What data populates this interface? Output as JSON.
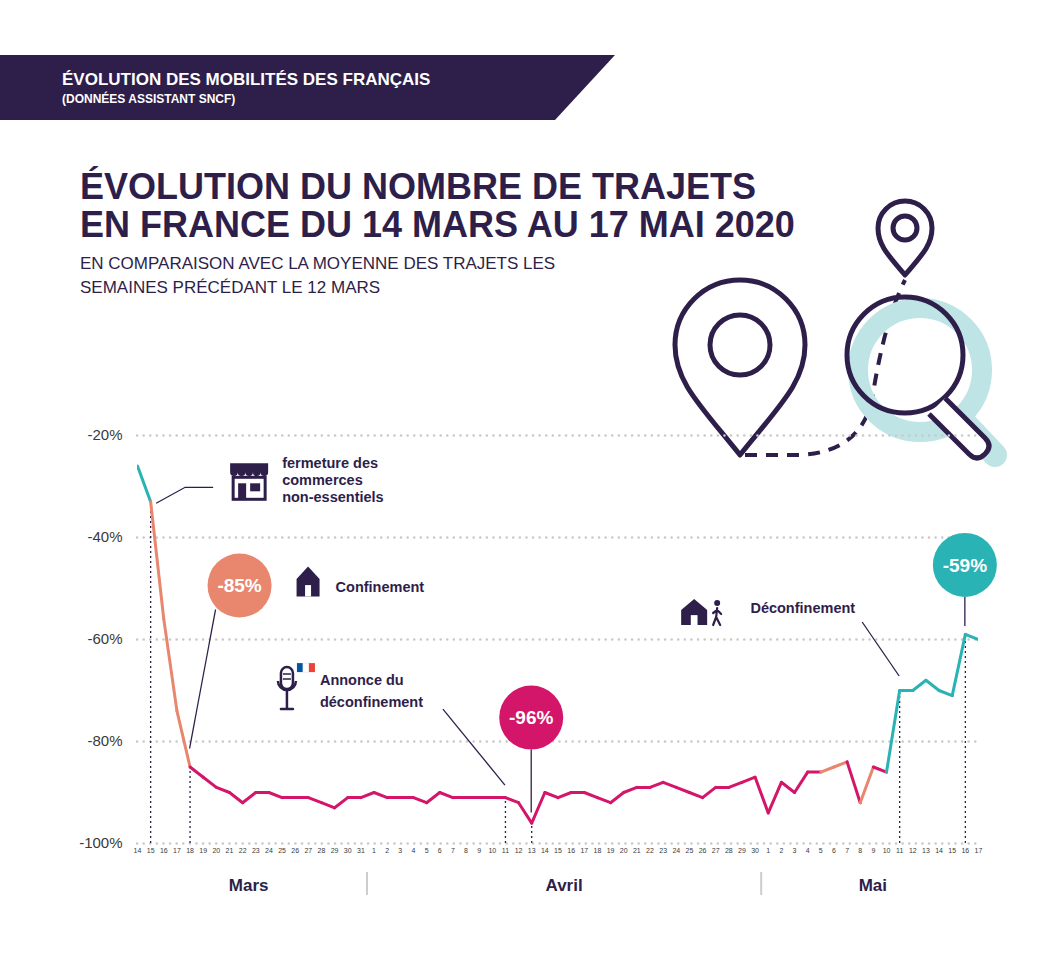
{
  "header": {
    "title": "ÉVOLUTION DES MOBILITÉS DES FRANÇAIS",
    "subtitle": "(DONNÉES ASSISTANT SNCF)"
  },
  "chart_data": {
    "type": "line",
    "title": "ÉVOLUTION DU NOMBRE DE TRAJETS EN FRANCE DU 14 MARS AU 17 MAI 2020",
    "subtitle": "EN COMPARAISON AVEC LA MOYENNE DES TRAJETS LES SEMAINES PRÉCÉDANT LE 12 MARS",
    "x": [
      "2020-03-14",
      "2020-03-15",
      "2020-03-16",
      "2020-03-17",
      "2020-03-18",
      "2020-03-19",
      "2020-03-20",
      "2020-03-21",
      "2020-03-22",
      "2020-03-23",
      "2020-03-24",
      "2020-03-25",
      "2020-03-26",
      "2020-03-27",
      "2020-03-28",
      "2020-03-29",
      "2020-03-30",
      "2020-03-31",
      "2020-04-01",
      "2020-04-02",
      "2020-04-03",
      "2020-04-04",
      "2020-04-05",
      "2020-04-06",
      "2020-04-07",
      "2020-04-08",
      "2020-04-09",
      "2020-04-10",
      "2020-04-11",
      "2020-04-12",
      "2020-04-13",
      "2020-04-14",
      "2020-04-15",
      "2020-04-16",
      "2020-04-17",
      "2020-04-18",
      "2020-04-19",
      "2020-04-20",
      "2020-04-21",
      "2020-04-22",
      "2020-04-23",
      "2020-04-24",
      "2020-04-25",
      "2020-04-26",
      "2020-04-27",
      "2020-04-28",
      "2020-04-29",
      "2020-04-30",
      "2020-05-01",
      "2020-05-02",
      "2020-05-03",
      "2020-05-04",
      "2020-05-05",
      "2020-05-06",
      "2020-05-07",
      "2020-05-08",
      "2020-05-09",
      "2020-05-10",
      "2020-05-11",
      "2020-05-12",
      "2020-05-13",
      "2020-05-14",
      "2020-05-15",
      "2020-05-16",
      "2020-05-17"
    ],
    "values": [
      -26,
      -33,
      -56,
      -74,
      -85,
      -87,
      -89,
      -90,
      -92,
      -90,
      -90,
      -91,
      -91,
      -91,
      -92,
      -93,
      -91,
      -91,
      -90,
      -91,
      -91,
      -91,
      -92,
      -90,
      -91,
      -91,
      -91,
      -91,
      -91,
      -92,
      -96,
      -90,
      -91,
      -90,
      -90,
      -91,
      -92,
      -90,
      -89,
      -89,
      -88,
      -89,
      -90,
      -91,
      -89,
      -89,
      -88,
      -87,
      -94,
      -88,
      -90,
      -86,
      -86,
      -85,
      -84,
      -92,
      -85,
      -86,
      -70,
      -70,
      -68,
      -70,
      -71,
      -59,
      -60
    ],
    "colors": [
      "#2ab3b5",
      "#2ab3b5",
      "#e8866e",
      "#e8866e",
      "#e8866e",
      "#d4166a",
      "#d4166a",
      "#d4166a",
      "#d4166a",
      "#d4166a",
      "#d4166a",
      "#d4166a",
      "#d4166a",
      "#d4166a",
      "#d4166a",
      "#d4166a",
      "#d4166a",
      "#d4166a",
      "#d4166a",
      "#d4166a",
      "#d4166a",
      "#d4166a",
      "#d4166a",
      "#d4166a",
      "#d4166a",
      "#d4166a",
      "#d4166a",
      "#d4166a",
      "#d4166a",
      "#d4166a",
      "#d4166a",
      "#d4166a",
      "#d4166a",
      "#d4166a",
      "#d4166a",
      "#d4166a",
      "#d4166a",
      "#d4166a",
      "#d4166a",
      "#d4166a",
      "#d4166a",
      "#d4166a",
      "#d4166a",
      "#d4166a",
      "#d4166a",
      "#d4166a",
      "#d4166a",
      "#d4166a",
      "#d4166a",
      "#d4166a",
      "#d4166a",
      "#d4166a",
      "#d4166a",
      "#e8866e",
      "#e8866e",
      "#d4166a",
      "#e8866e",
      "#d4166a",
      "#2ab3b5",
      "#2ab3b5",
      "#2ab3b5",
      "#2ab3b5",
      "#2ab3b5",
      "#2ab3b5",
      "#2ab3b5"
    ],
    "xlim": [
      "2020-03-14",
      "2020-05-17"
    ],
    "xticks": [
      {
        "value": "2020-03-14",
        "label": "14"
      },
      {
        "value": "2020-03-15",
        "label": "15"
      },
      {
        "value": "2020-03-16",
        "label": "16"
      },
      {
        "value": "2020-03-17",
        "label": "17"
      },
      {
        "value": "2020-03-18",
        "label": "18"
      },
      {
        "value": "2020-03-19",
        "label": "19"
      },
      {
        "value": "2020-03-20",
        "label": "20"
      },
      {
        "value": "2020-03-21",
        "label": "21"
      },
      {
        "value": "2020-03-22",
        "label": "22"
      },
      {
        "value": "2020-03-23",
        "label": "23"
      },
      {
        "value": "2020-03-24",
        "label": "24"
      },
      {
        "value": "2020-03-25",
        "label": "25"
      },
      {
        "value": "2020-03-26",
        "label": "26"
      },
      {
        "value": "2020-03-27",
        "label": "27"
      },
      {
        "value": "2020-03-28",
        "label": "28"
      },
      {
        "value": "2020-03-29",
        "label": "29"
      },
      {
        "value": "2020-03-30",
        "label": "30"
      },
      {
        "value": "2020-03-31",
        "label": "31"
      },
      {
        "value": "2020-04-01",
        "label": "1"
      },
      {
        "value": "2020-04-02",
        "label": "2"
      },
      {
        "value": "2020-04-03",
        "label": "3"
      },
      {
        "value": "2020-04-04",
        "label": "4"
      },
      {
        "value": "2020-04-05",
        "label": "5"
      },
      {
        "value": "2020-04-06",
        "label": "6"
      },
      {
        "value": "2020-04-07",
        "label": "7"
      },
      {
        "value": "2020-04-08",
        "label": "8"
      },
      {
        "value": "2020-04-09",
        "label": "9"
      },
      {
        "value": "2020-04-10",
        "label": "10"
      },
      {
        "value": "2020-04-11",
        "label": "11"
      },
      {
        "value": "2020-04-12",
        "label": "12"
      },
      {
        "value": "2020-04-13",
        "label": "13"
      },
      {
        "value": "2020-04-14",
        "label": "14"
      },
      {
        "value": "2020-04-15",
        "label": "15"
      },
      {
        "value": "2020-04-16",
        "label": "16"
      },
      {
        "value": "2020-04-17",
        "label": "17"
      },
      {
        "value": "2020-04-18",
        "label": "18"
      },
      {
        "value": "2020-04-19",
        "label": "19"
      },
      {
        "value": "2020-04-20",
        "label": "20"
      },
      {
        "value": "2020-04-21",
        "label": "21"
      },
      {
        "value": "2020-04-22",
        "label": "22"
      },
      {
        "value": "2020-04-23",
        "label": "23"
      },
      {
        "value": "2020-04-24",
        "label": "24"
      },
      {
        "value": "2020-04-25",
        "label": "25"
      },
      {
        "value": "2020-04-26",
        "label": "26"
      },
      {
        "value": "2020-04-27",
        "label": "27"
      },
      {
        "value": "2020-04-28",
        "label": "28"
      },
      {
        "value": "2020-04-29",
        "label": "29"
      },
      {
        "value": "2020-04-30",
        "label": "30"
      },
      {
        "value": "2020-05-01",
        "label": "1"
      },
      {
        "value": "2020-05-02",
        "label": "2"
      },
      {
        "value": "2020-05-03",
        "label": "3"
      },
      {
        "value": "2020-05-04",
        "label": "4"
      },
      {
        "value": "2020-05-05",
        "label": "5"
      },
      {
        "value": "2020-05-06",
        "label": "6"
      },
      {
        "value": "2020-05-07",
        "label": "7"
      },
      {
        "value": "2020-05-08",
        "label": "8"
      },
      {
        "value": "2020-05-09",
        "label": "9"
      },
      {
        "value": "2020-05-10",
        "label": "10"
      },
      {
        "value": "2020-05-11",
        "label": "11"
      },
      {
        "value": "2020-05-12",
        "label": "12"
      },
      {
        "value": "2020-05-13",
        "label": "13"
      },
      {
        "value": "2020-05-14",
        "label": "14"
      },
      {
        "value": "2020-05-15",
        "label": "15"
      },
      {
        "value": "2020-05-16",
        "label": "16"
      },
      {
        "value": "2020-05-17",
        "label": "17"
      }
    ],
    "months": [
      "Mars",
      "Avril",
      "Mai"
    ],
    "ylim": [
      -100,
      -20
    ],
    "yticks": [
      {
        "value": -100,
        "label": "-100%"
      },
      {
        "value": -80,
        "label": "-80%"
      },
      {
        "value": -60,
        "label": "-60%"
      },
      {
        "value": -40,
        "label": "-40%"
      },
      {
        "value": -20,
        "label": "-20%"
      }
    ],
    "grid": true,
    "annotations": [
      {
        "x": "2020-03-15",
        "text": "fermeture des commerces non-essentiels"
      },
      {
        "x": "2020-03-18",
        "value": -85,
        "value_label": "-85%",
        "color": "#e8866e",
        "text": "Confinement"
      },
      {
        "x": "2020-04-11",
        "text": "Annonce du déconfinement"
      },
      {
        "x": "2020-04-13",
        "value": -96,
        "value_label": "-96%",
        "color": "#d4166a"
      },
      {
        "x": "2020-05-11",
        "text": "Déconfinement"
      },
      {
        "x": "2020-05-16",
        "value": -59,
        "value_label": "-59%",
        "color": "#2ab3b5"
      }
    ]
  }
}
